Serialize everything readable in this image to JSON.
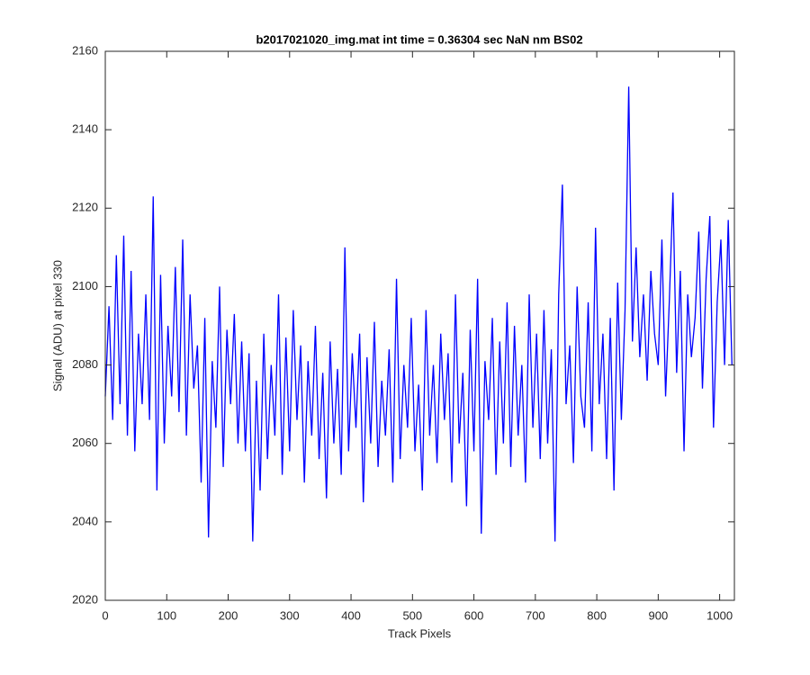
{
  "chart_data": {
    "type": "line",
    "title": "b2017021020_img.mat int time = 0.36304 sec  NaN nm BS02",
    "xlabel": "Track Pixels",
    "ylabel": "Signal (ADU) at pixel 330",
    "xlim": [
      0,
      1024
    ],
    "ylim": [
      2020,
      2160
    ],
    "xticks": [
      0,
      100,
      200,
      300,
      400,
      500,
      600,
      700,
      800,
      900,
      1000
    ],
    "yticks": [
      2020,
      2040,
      2060,
      2080,
      2100,
      2120,
      2140,
      2160
    ],
    "grid": false,
    "series": [
      {
        "color": "#0000ff",
        "x": [
          0,
          6,
          12,
          18,
          24,
          30,
          36,
          42,
          48,
          54,
          60,
          66,
          72,
          78,
          84,
          90,
          96,
          102,
          108,
          114,
          120,
          126,
          132,
          138,
          144,
          150,
          156,
          162,
          168,
          174,
          180,
          186,
          192,
          198,
          204,
          210,
          216,
          222,
          228,
          234,
          240,
          246,
          252,
          258,
          264,
          270,
          276,
          282,
          288,
          294,
          300,
          306,
          312,
          318,
          324,
          330,
          336,
          342,
          348,
          354,
          360,
          366,
          372,
          378,
          384,
          390,
          396,
          402,
          408,
          414,
          420,
          426,
          432,
          438,
          444,
          450,
          456,
          462,
          468,
          474,
          480,
          486,
          492,
          498,
          504,
          510,
          516,
          522,
          528,
          534,
          540,
          546,
          552,
          558,
          564,
          570,
          576,
          582,
          588,
          594,
          600,
          606,
          612,
          618,
          624,
          630,
          636,
          642,
          648,
          654,
          660,
          666,
          672,
          678,
          684,
          690,
          696,
          702,
          708,
          714,
          720,
          726,
          732,
          738,
          744,
          750,
          756,
          762,
          768,
          774,
          780,
          786,
          792,
          798,
          804,
          810,
          816,
          822,
          828,
          834,
          840,
          846,
          852,
          858,
          864,
          870,
          876,
          882,
          888,
          894,
          900,
          906,
          912,
          918,
          924,
          930,
          936,
          942,
          948,
          954,
          960,
          966,
          972,
          978,
          984,
          990,
          996,
          1002,
          1008,
          1014,
          1020
        ],
        "values": [
          2072,
          2095,
          2066,
          2108,
          2070,
          2113,
          2062,
          2104,
          2058,
          2088,
          2070,
          2098,
          2066,
          2123,
          2048,
          2103,
          2060,
          2090,
          2072,
          2105,
          2068,
          2112,
          2062,
          2098,
          2074,
          2085,
          2050,
          2092,
          2036,
          2081,
          2064,
          2100,
          2054,
          2089,
          2070,
          2093,
          2060,
          2086,
          2058,
          2083,
          2035,
          2076,
          2048,
          2088,
          2056,
          2080,
          2062,
          2098,
          2052,
          2087,
          2058,
          2094,
          2066,
          2085,
          2050,
          2081,
          2062,
          2090,
          2056,
          2078,
          2046,
          2086,
          2060,
          2079,
          2052,
          2110,
          2058,
          2083,
          2064,
          2088,
          2045,
          2082,
          2060,
          2091,
          2054,
          2076,
          2062,
          2084,
          2050,
          2102,
          2056,
          2080,
          2064,
          2092,
          2058,
          2075,
          2048,
          2094,
          2062,
          2080,
          2055,
          2088,
          2066,
          2083,
          2050,
          2098,
          2060,
          2078,
          2044,
          2089,
          2058,
          2102,
          2037,
          2081,
          2066,
          2092,
          2052,
          2086,
          2060,
          2096,
          2054,
          2090,
          2062,
          2080,
          2050,
          2098,
          2064,
          2088,
          2056,
          2094,
          2060,
          2084,
          2035,
          2098,
          2126,
          2070,
          2085,
          2055,
          2100,
          2072,
          2064,
          2096,
          2058,
          2115,
          2070,
          2088,
          2056,
          2092,
          2048,
          2101,
          2066,
          2094,
          2151,
          2086,
          2110,
          2082,
          2098,
          2076,
          2104,
          2088,
          2080,
          2112,
          2072,
          2096,
          2124,
          2078,
          2104,
          2058,
          2098,
          2082,
          2092,
          2114,
          2074,
          2102,
          2118,
          2064,
          2096,
          2112,
          2080,
          2117,
          2080
        ]
      }
    ]
  }
}
